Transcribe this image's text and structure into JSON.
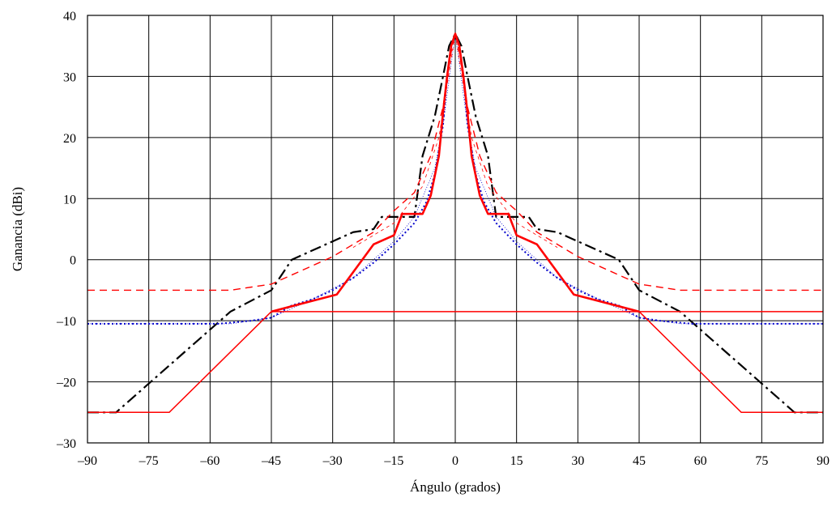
{
  "chart_data": {
    "type": "line",
    "title": "",
    "xlabel": "Ángulo (grados)",
    "ylabel": "Ganancia (dBi)",
    "xlim": [
      -90,
      90
    ],
    "ylim": [
      -30,
      40
    ],
    "xticks": [
      -90,
      -75,
      -60,
      -45,
      -30,
      -15,
      0,
      15,
      30,
      45,
      60,
      75,
      90
    ],
    "yticks": [
      -30,
      -20,
      -10,
      0,
      10,
      20,
      30,
      40
    ],
    "xtick_labels": [
      "–90",
      "–75",
      "–60",
      "–45",
      "–30",
      "–15",
      "0",
      "15",
      "30",
      "45",
      "60",
      "75",
      "90"
    ],
    "ytick_labels": [
      "–30",
      "–20",
      "–10",
      "0",
      "10",
      "20",
      "30",
      "40"
    ],
    "grid": true,
    "legend": "none",
    "series": [
      {
        "style": "dash-dot",
        "color": "#000000",
        "width": 2.2,
        "points": [
          [
            -90,
            -25
          ],
          [
            -83,
            -25
          ],
          [
            -55,
            -8.5
          ],
          [
            -45,
            -5
          ],
          [
            -40,
            0
          ],
          [
            -30,
            3
          ],
          [
            -25,
            4.5
          ],
          [
            -20,
            5
          ],
          [
            -18,
            7
          ],
          [
            -10,
            7
          ],
          [
            -8,
            17
          ],
          [
            -5,
            23.5
          ],
          [
            -3,
            30
          ],
          [
            -1.5,
            35
          ],
          [
            0,
            37
          ],
          [
            1.5,
            35
          ],
          [
            3,
            30
          ],
          [
            5,
            23.5
          ],
          [
            8,
            17
          ],
          [
            10,
            7
          ],
          [
            18,
            7
          ],
          [
            20,
            5
          ],
          [
            25,
            4.5
          ],
          [
            30,
            3
          ],
          [
            40,
            0
          ],
          [
            45,
            -5
          ],
          [
            55,
            -8.5
          ],
          [
            83,
            -25
          ],
          [
            90,
            -25
          ]
        ]
      },
      {
        "style": "dotted",
        "color": "#0000cc",
        "width": 2,
        "points": [
          [
            -90,
            -10.5
          ],
          [
            -58,
            -10.5
          ],
          [
            -50,
            -10
          ],
          [
            -45,
            -9.5
          ],
          [
            -40,
            -7.5
          ],
          [
            -35,
            -6.5
          ],
          [
            -30,
            -5
          ],
          [
            -25,
            -3
          ],
          [
            -20,
            -0.5
          ],
          [
            -15,
            2.5
          ],
          [
            -10,
            6
          ],
          [
            -7,
            9.5
          ],
          [
            -5,
            14
          ],
          [
            -3,
            22
          ],
          [
            -2,
            30
          ],
          [
            -1,
            35
          ],
          [
            0,
            37
          ],
          [
            1,
            35
          ],
          [
            2,
            30
          ],
          [
            3,
            22
          ],
          [
            5,
            14
          ],
          [
            7,
            9.5
          ],
          [
            10,
            6
          ],
          [
            15,
            2.5
          ],
          [
            20,
            -0.5
          ],
          [
            25,
            -3
          ],
          [
            30,
            -5
          ],
          [
            35,
            -6.5
          ],
          [
            40,
            -7.5
          ],
          [
            45,
            -9.5
          ],
          [
            50,
            -10
          ],
          [
            58,
            -10.5
          ],
          [
            90,
            -10.5
          ]
        ]
      },
      {
        "style": "thin-dotted",
        "color": "#0000cc",
        "width": 0.8,
        "points": [
          [
            -90,
            -10.5
          ],
          [
            -55,
            -10.5
          ],
          [
            -45,
            -9.5
          ],
          [
            -35,
            -6.5
          ],
          [
            -25,
            -3
          ],
          [
            -15,
            3
          ],
          [
            -10,
            7
          ],
          [
            -5,
            15
          ],
          [
            -3,
            22
          ],
          [
            0,
            37
          ],
          [
            3,
            22
          ],
          [
            5,
            15
          ],
          [
            10,
            7
          ],
          [
            15,
            3
          ],
          [
            25,
            -3
          ],
          [
            35,
            -6.5
          ],
          [
            45,
            -9.5
          ],
          [
            55,
            -10.5
          ],
          [
            90,
            -10.5
          ]
        ]
      },
      {
        "style": "solid",
        "color": "#ff0000",
        "width": 1.5,
        "points": [
          [
            -90,
            -25
          ],
          [
            -70,
            -25
          ],
          [
            -45,
            -8.5
          ],
          [
            90,
            -8.5
          ]
        ]
      },
      {
        "style": "solid-thick",
        "color": "#ff0000",
        "width": 2.6,
        "points": [
          [
            -45,
            -8.5
          ],
          [
            -29,
            -5.7
          ],
          [
            -20,
            2.5
          ],
          [
            -15,
            4
          ],
          [
            -13,
            7.5
          ],
          [
            -8,
            7.5
          ],
          [
            -6,
            10.5
          ],
          [
            -4,
            17
          ],
          [
            -3,
            24
          ],
          [
            -2,
            30
          ],
          [
            -1,
            35
          ],
          [
            0,
            37
          ],
          [
            1,
            35
          ],
          [
            2,
            30
          ],
          [
            3,
            24
          ],
          [
            4,
            17
          ],
          [
            6,
            10.5
          ],
          [
            8,
            7.5
          ],
          [
            13,
            7.5
          ],
          [
            15,
            4
          ],
          [
            20,
            2.5
          ],
          [
            29,
            -5.7
          ],
          [
            45,
            -8.5
          ]
        ]
      },
      {
        "style": "solid-thin-right",
        "color": "#ff0000",
        "width": 1.5,
        "points": [
          [
            45,
            -8.5
          ],
          [
            70,
            -25
          ],
          [
            90,
            -25
          ]
        ]
      },
      {
        "style": "dashed",
        "color": "#ff0000",
        "width": 1.4,
        "points": [
          [
            -90,
            -5
          ],
          [
            -55,
            -5
          ],
          [
            -45,
            -4
          ],
          [
            -40,
            -2.5
          ],
          [
            -30,
            0.5
          ],
          [
            -20,
            4.5
          ],
          [
            -15,
            8
          ],
          [
            -10,
            11
          ],
          [
            -6,
            17
          ],
          [
            -3,
            25
          ],
          [
            -1,
            34
          ],
          [
            0,
            37
          ],
          [
            1,
            34
          ],
          [
            3,
            25
          ],
          [
            6,
            17
          ],
          [
            10,
            11
          ],
          [
            15,
            8
          ],
          [
            20,
            4.5
          ],
          [
            30,
            0.5
          ],
          [
            40,
            -2.5
          ],
          [
            45,
            -4
          ],
          [
            55,
            -5
          ],
          [
            90,
            -5
          ]
        ]
      },
      {
        "style": "thin-dashed",
        "color": "#ff0000",
        "width": 0.8,
        "points": [
          [
            -25,
            2
          ],
          [
            -15,
            6
          ],
          [
            -8,
            12
          ],
          [
            -4,
            20
          ],
          [
            0,
            37
          ],
          [
            4,
            20
          ],
          [
            8,
            12
          ],
          [
            15,
            6
          ],
          [
            25,
            2
          ]
        ]
      }
    ]
  }
}
